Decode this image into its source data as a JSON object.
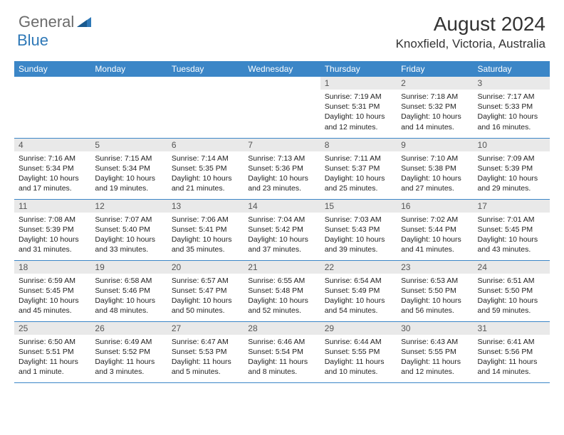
{
  "brand": {
    "gray": "General",
    "blue": "Blue"
  },
  "title": {
    "monthYear": "August 2024",
    "location": "Knoxfield, Victoria, Australia"
  },
  "colors": {
    "headerBg": "#3b86c7",
    "dayBg": "#e9e9e9",
    "rule": "#3b86c7"
  },
  "dayHeaders": [
    "Sunday",
    "Monday",
    "Tuesday",
    "Wednesday",
    "Thursday",
    "Friday",
    "Saturday"
  ],
  "weeks": [
    [
      null,
      null,
      null,
      null,
      {
        "n": "1",
        "sr": "Sunrise: 7:19 AM",
        "ss": "Sunset: 5:31 PM",
        "dl": "Daylight: 10 hours and 12 minutes."
      },
      {
        "n": "2",
        "sr": "Sunrise: 7:18 AM",
        "ss": "Sunset: 5:32 PM",
        "dl": "Daylight: 10 hours and 14 minutes."
      },
      {
        "n": "3",
        "sr": "Sunrise: 7:17 AM",
        "ss": "Sunset: 5:33 PM",
        "dl": "Daylight: 10 hours and 16 minutes."
      }
    ],
    [
      {
        "n": "4",
        "sr": "Sunrise: 7:16 AM",
        "ss": "Sunset: 5:34 PM",
        "dl": "Daylight: 10 hours and 17 minutes."
      },
      {
        "n": "5",
        "sr": "Sunrise: 7:15 AM",
        "ss": "Sunset: 5:34 PM",
        "dl": "Daylight: 10 hours and 19 minutes."
      },
      {
        "n": "6",
        "sr": "Sunrise: 7:14 AM",
        "ss": "Sunset: 5:35 PM",
        "dl": "Daylight: 10 hours and 21 minutes."
      },
      {
        "n": "7",
        "sr": "Sunrise: 7:13 AM",
        "ss": "Sunset: 5:36 PM",
        "dl": "Daylight: 10 hours and 23 minutes."
      },
      {
        "n": "8",
        "sr": "Sunrise: 7:11 AM",
        "ss": "Sunset: 5:37 PM",
        "dl": "Daylight: 10 hours and 25 minutes."
      },
      {
        "n": "9",
        "sr": "Sunrise: 7:10 AM",
        "ss": "Sunset: 5:38 PM",
        "dl": "Daylight: 10 hours and 27 minutes."
      },
      {
        "n": "10",
        "sr": "Sunrise: 7:09 AM",
        "ss": "Sunset: 5:39 PM",
        "dl": "Daylight: 10 hours and 29 minutes."
      }
    ],
    [
      {
        "n": "11",
        "sr": "Sunrise: 7:08 AM",
        "ss": "Sunset: 5:39 PM",
        "dl": "Daylight: 10 hours and 31 minutes."
      },
      {
        "n": "12",
        "sr": "Sunrise: 7:07 AM",
        "ss": "Sunset: 5:40 PM",
        "dl": "Daylight: 10 hours and 33 minutes."
      },
      {
        "n": "13",
        "sr": "Sunrise: 7:06 AM",
        "ss": "Sunset: 5:41 PM",
        "dl": "Daylight: 10 hours and 35 minutes."
      },
      {
        "n": "14",
        "sr": "Sunrise: 7:04 AM",
        "ss": "Sunset: 5:42 PM",
        "dl": "Daylight: 10 hours and 37 minutes."
      },
      {
        "n": "15",
        "sr": "Sunrise: 7:03 AM",
        "ss": "Sunset: 5:43 PM",
        "dl": "Daylight: 10 hours and 39 minutes."
      },
      {
        "n": "16",
        "sr": "Sunrise: 7:02 AM",
        "ss": "Sunset: 5:44 PM",
        "dl": "Daylight: 10 hours and 41 minutes."
      },
      {
        "n": "17",
        "sr": "Sunrise: 7:01 AM",
        "ss": "Sunset: 5:45 PM",
        "dl": "Daylight: 10 hours and 43 minutes."
      }
    ],
    [
      {
        "n": "18",
        "sr": "Sunrise: 6:59 AM",
        "ss": "Sunset: 5:45 PM",
        "dl": "Daylight: 10 hours and 45 minutes."
      },
      {
        "n": "19",
        "sr": "Sunrise: 6:58 AM",
        "ss": "Sunset: 5:46 PM",
        "dl": "Daylight: 10 hours and 48 minutes."
      },
      {
        "n": "20",
        "sr": "Sunrise: 6:57 AM",
        "ss": "Sunset: 5:47 PM",
        "dl": "Daylight: 10 hours and 50 minutes."
      },
      {
        "n": "21",
        "sr": "Sunrise: 6:55 AM",
        "ss": "Sunset: 5:48 PM",
        "dl": "Daylight: 10 hours and 52 minutes."
      },
      {
        "n": "22",
        "sr": "Sunrise: 6:54 AM",
        "ss": "Sunset: 5:49 PM",
        "dl": "Daylight: 10 hours and 54 minutes."
      },
      {
        "n": "23",
        "sr": "Sunrise: 6:53 AM",
        "ss": "Sunset: 5:50 PM",
        "dl": "Daylight: 10 hours and 56 minutes."
      },
      {
        "n": "24",
        "sr": "Sunrise: 6:51 AM",
        "ss": "Sunset: 5:50 PM",
        "dl": "Daylight: 10 hours and 59 minutes."
      }
    ],
    [
      {
        "n": "25",
        "sr": "Sunrise: 6:50 AM",
        "ss": "Sunset: 5:51 PM",
        "dl": "Daylight: 11 hours and 1 minute."
      },
      {
        "n": "26",
        "sr": "Sunrise: 6:49 AM",
        "ss": "Sunset: 5:52 PM",
        "dl": "Daylight: 11 hours and 3 minutes."
      },
      {
        "n": "27",
        "sr": "Sunrise: 6:47 AM",
        "ss": "Sunset: 5:53 PM",
        "dl": "Daylight: 11 hours and 5 minutes."
      },
      {
        "n": "28",
        "sr": "Sunrise: 6:46 AM",
        "ss": "Sunset: 5:54 PM",
        "dl": "Daylight: 11 hours and 8 minutes."
      },
      {
        "n": "29",
        "sr": "Sunrise: 6:44 AM",
        "ss": "Sunset: 5:55 PM",
        "dl": "Daylight: 11 hours and 10 minutes."
      },
      {
        "n": "30",
        "sr": "Sunrise: 6:43 AM",
        "ss": "Sunset: 5:55 PM",
        "dl": "Daylight: 11 hours and 12 minutes."
      },
      {
        "n": "31",
        "sr": "Sunrise: 6:41 AM",
        "ss": "Sunset: 5:56 PM",
        "dl": "Daylight: 11 hours and 14 minutes."
      }
    ]
  ]
}
